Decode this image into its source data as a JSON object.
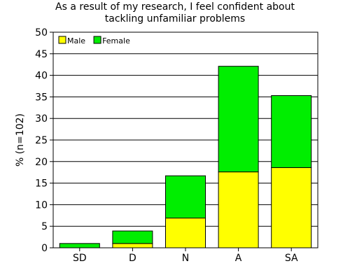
{
  "chart_data": {
    "type": "bar",
    "stacked": true,
    "title_lines": [
      "As a result of my research, I feel confident about",
      "tackling unfamiliar problems"
    ],
    "xlabel": "",
    "ylabel": "% (n=102)",
    "categories": [
      "SD",
      "D",
      "N",
      "A",
      "SA"
    ],
    "series": [
      {
        "name": "Male",
        "color": "#ffff00",
        "values": [
          0,
          1.0,
          6.9,
          17.6,
          18.6
        ]
      },
      {
        "name": "Female",
        "color": "#00ee00",
        "values": [
          1.0,
          2.9,
          9.8,
          24.5,
          16.7
        ]
      }
    ],
    "ylim": [
      0,
      50
    ],
    "yticks": [
      0,
      5,
      10,
      15,
      20,
      25,
      30,
      35,
      40,
      45,
      50
    ],
    "grid": true,
    "legend_position": "top-left"
  }
}
